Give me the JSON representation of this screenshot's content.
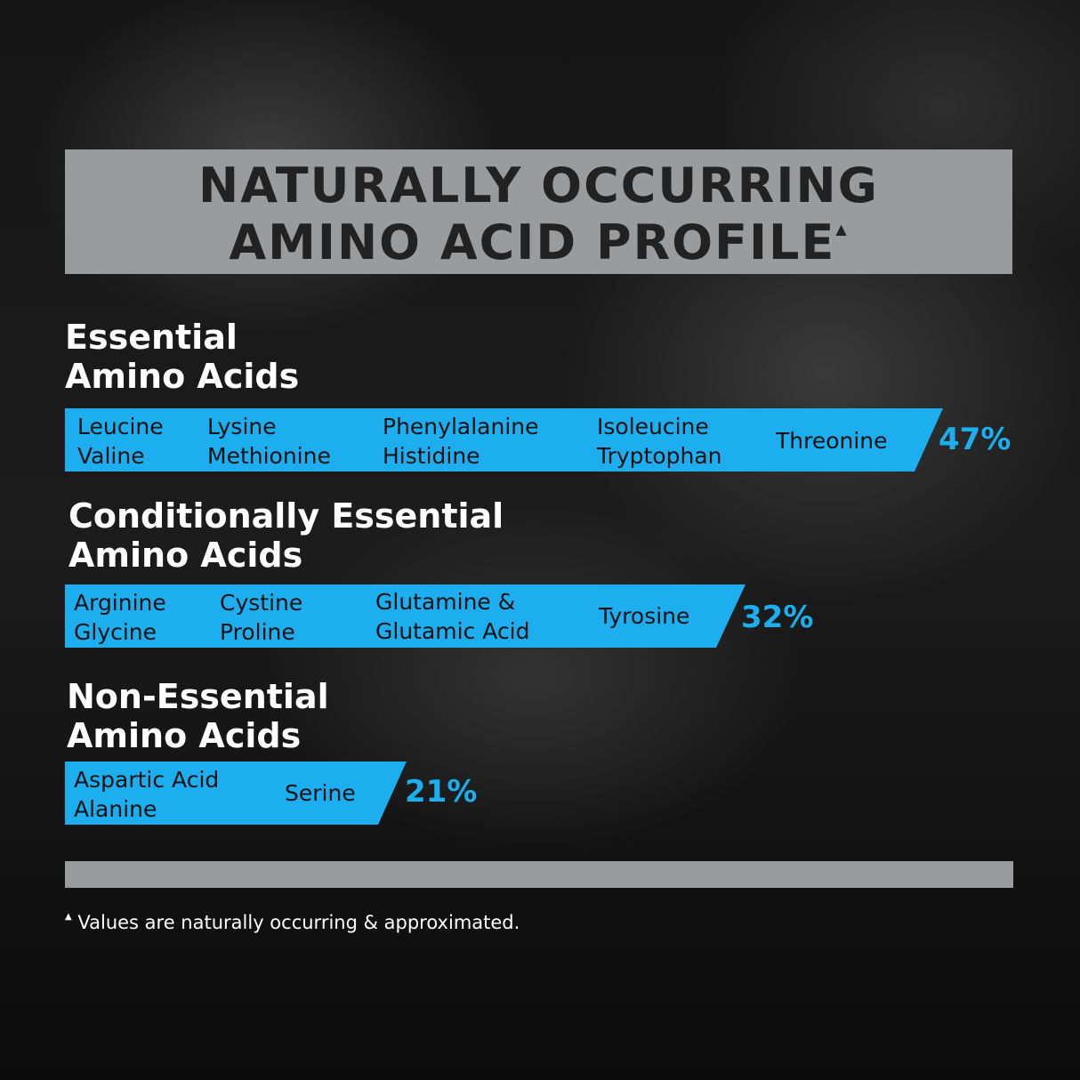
{
  "title": {
    "line1": "NATURALLY OCCURRING",
    "line2": "AMINO ACID PROFILE",
    "marker": "▲"
  },
  "sections": [
    {
      "heading1": "Essential",
      "heading2": "Amino Acids",
      "percent": "47%",
      "percent_value": 47,
      "columns": [
        [
          "Leucine",
          "Valine"
        ],
        [
          "Lysine",
          "Methionine"
        ],
        [
          "Phenylalanine",
          "Histidine"
        ],
        [
          "Isoleucine",
          "Tryptophan"
        ],
        [
          "Threonine"
        ]
      ]
    },
    {
      "heading1": "Conditionally Essential",
      "heading2": "Amino Acids",
      "percent": "32%",
      "percent_value": 32,
      "columns": [
        [
          "Arginine",
          "Glycine"
        ],
        [
          "Cystine",
          "Proline"
        ],
        [
          "Glutamine &",
          "Glutamic Acid"
        ],
        [
          "Tyrosine"
        ]
      ]
    },
    {
      "heading1": "Non-Essential",
      "heading2": "Amino Acids",
      "percent": "21%",
      "percent_value": 21,
      "columns": [
        [
          "Aspartic Acid",
          "Alanine"
        ],
        [
          "Serine"
        ]
      ]
    }
  ],
  "footnote": {
    "marker": "▲",
    "text": "Values are naturally occurring & approximated."
  },
  "colors": {
    "bar": "#1daeef",
    "title_box": "#9a9b9d",
    "background": "#161616"
  }
}
